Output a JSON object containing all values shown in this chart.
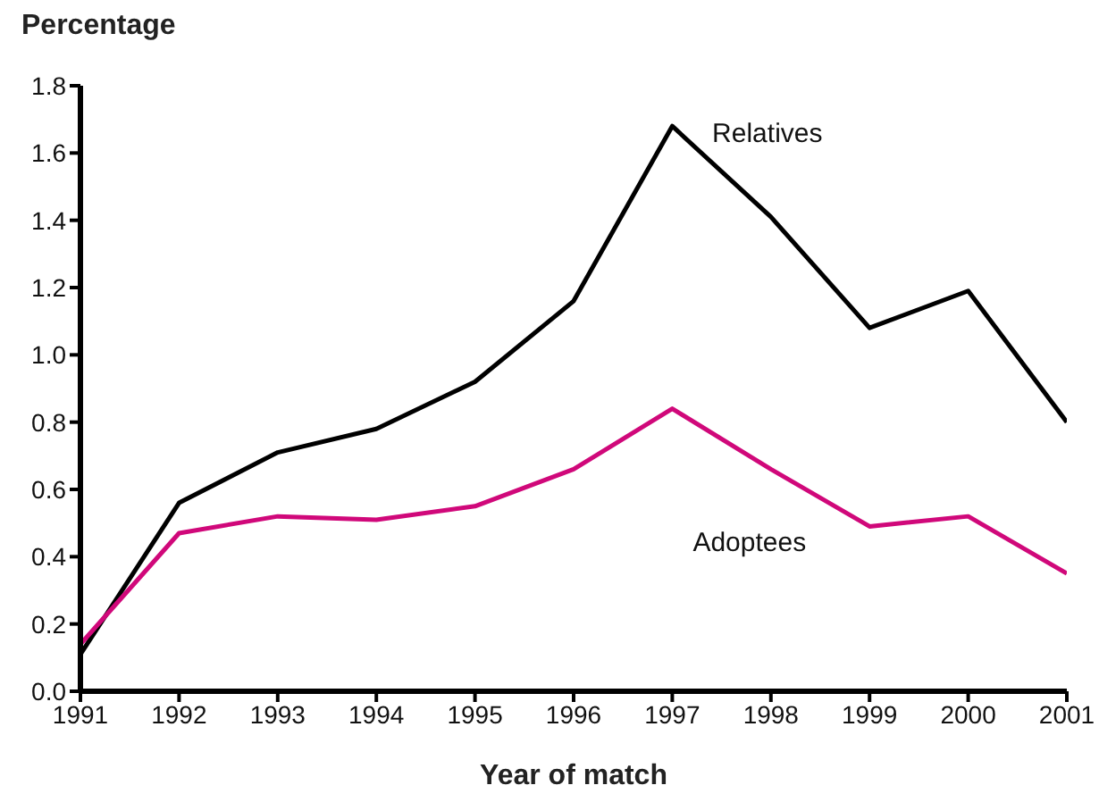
{
  "chart_data": {
    "type": "line",
    "ylabel": "Percentage",
    "xlabel": "Year of match",
    "x": [
      1991,
      1992,
      1993,
      1994,
      1995,
      1996,
      1997,
      1998,
      1999,
      2000,
      2001
    ],
    "xlim": [
      1991,
      2001
    ],
    "xticks": [
      1991,
      1992,
      1993,
      1994,
      1995,
      1996,
      1997,
      1998,
      1999,
      2000,
      2001
    ],
    "ylim": [
      0,
      1.8
    ],
    "yticks": [
      {
        "value": 0,
        "label": "0.0"
      },
      0.2,
      0.4,
      0.6,
      0.8,
      {
        "value": 1,
        "label": "1.0"
      },
      1.2,
      1.4,
      1.6,
      1.8
    ],
    "grid": false,
    "legend": false,
    "marker": "none",
    "line_style": "solid",
    "series": [
      {
        "name": "Relatives",
        "color": "#000000",
        "values": [
          0.11,
          0.56,
          0.71,
          0.78,
          0.92,
          1.16,
          1.68,
          1.41,
          1.08,
          1.19,
          0.8
        ]
      },
      {
        "name": "Adoptees",
        "color": "#d0087a",
        "values": [
          0.14,
          0.47,
          0.52,
          0.51,
          0.55,
          0.66,
          0.84,
          0.66,
          0.49,
          0.52,
          0.35
        ]
      }
    ]
  }
}
